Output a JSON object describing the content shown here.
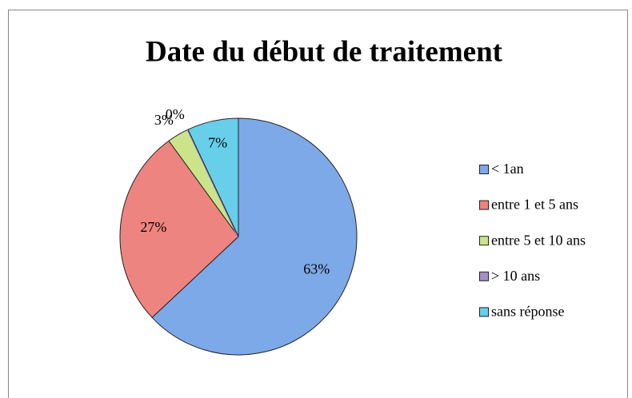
{
  "chart_data": {
    "type": "pie",
    "title": "Date du début de traitement",
    "categories": [
      "< 1an",
      "entre 1 et 5 ans",
      "entre 5 et 10 ans",
      "> 10 ans",
      "sans réponse"
    ],
    "values": [
      63,
      27,
      3,
      0,
      7
    ],
    "value_labels": [
      "63%",
      "27%",
      "3%",
      "0%",
      "7%"
    ],
    "colors": [
      "#7ea9e8",
      "#ee8480",
      "#cbe48a",
      "#a68fc8",
      "#67cfe9"
    ],
    "legend": "right"
  }
}
